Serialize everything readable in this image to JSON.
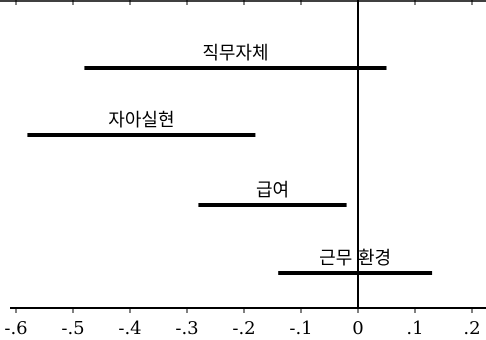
{
  "chart_data": {
    "type": "interval",
    "title": "",
    "xlabel": "",
    "ylabel": "",
    "xlim": [
      -0.65,
      0.2
    ],
    "ticks": [
      {
        "value": -0.6,
        "label": "-.6"
      },
      {
        "value": -0.5,
        "label": "-.5"
      },
      {
        "value": -0.4,
        "label": "-.4"
      },
      {
        "value": -0.3,
        "label": "-.3"
      },
      {
        "value": -0.2,
        "label": "-.2"
      },
      {
        "value": -0.1,
        "label": "-.1"
      },
      {
        "value": 0.0,
        "label": "0"
      },
      {
        "value": 0.1,
        "label": ".1"
      },
      {
        "value": 0.2,
        "label": ".2"
      }
    ],
    "reference_line": 0,
    "intervals": [
      {
        "label": "직무자체",
        "low": -0.48,
        "high": 0.05
      },
      {
        "label": "자아실현",
        "low": -0.58,
        "high": -0.18
      },
      {
        "label": "급여",
        "low": -0.28,
        "high": -0.02
      },
      {
        "label": "근무 환경",
        "low": -0.14,
        "high": 0.13
      }
    ]
  }
}
